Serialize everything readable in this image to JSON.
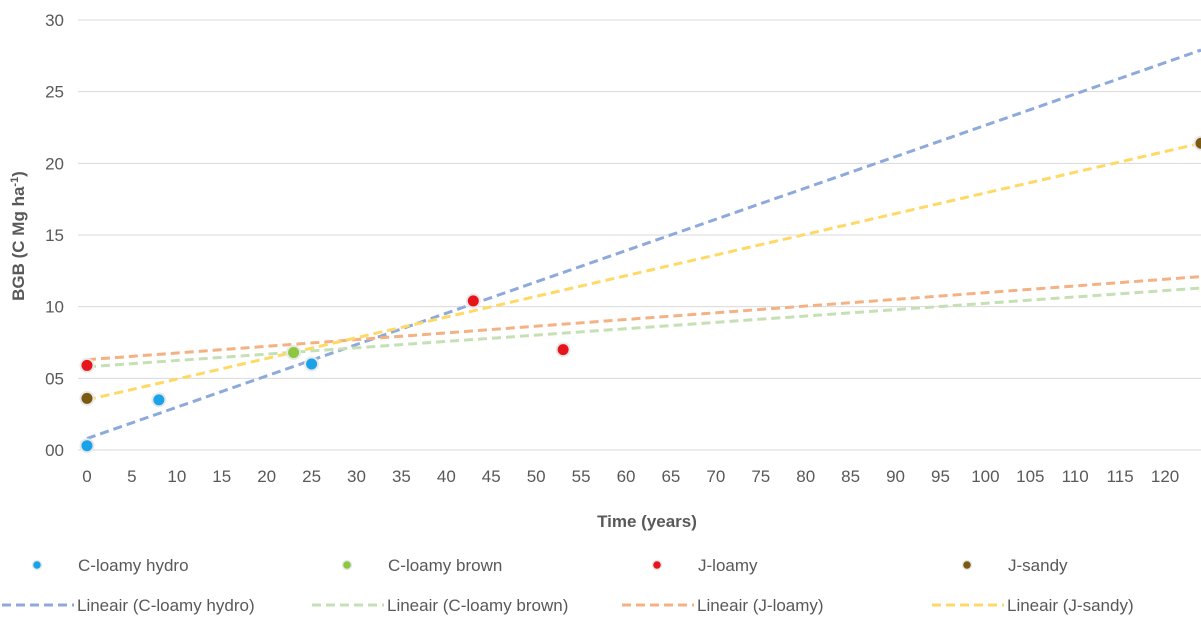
{
  "chart_data": {
    "type": "scatter",
    "title": "",
    "xlabel": "Time (years)",
    "ylabel": "BGB (C Mg ha",
    "ylabel_sup": "-1",
    "ylabel_tail": ")",
    "xlim": [
      -1,
      124
    ],
    "ylim": [
      0,
      30
    ],
    "x_ticks": [
      0,
      5,
      10,
      15,
      20,
      25,
      30,
      35,
      40,
      45,
      50,
      55,
      60,
      65,
      70,
      75,
      80,
      85,
      90,
      95,
      100,
      105,
      110,
      115,
      120
    ],
    "y_ticks": [
      0,
      5,
      10,
      15,
      20,
      25,
      30
    ],
    "y_tick_labels": [
      "00",
      "05",
      "10",
      "15",
      "20",
      "25",
      "30"
    ],
    "grid": "horizontal",
    "legend_position": "bottom",
    "series": [
      {
        "name": "C-loamy hydro",
        "color": "#1aa3e8",
        "x": [
          0,
          8,
          25
        ],
        "y": [
          0.3,
          3.5,
          6.0
        ]
      },
      {
        "name": "C-loamy brown",
        "color": "#8dc63f",
        "x": [
          23
        ],
        "y": [
          6.8
        ]
      },
      {
        "name": "J-loamy",
        "color": "#e8141c",
        "x": [
          0,
          43,
          53
        ],
        "y": [
          5.9,
          10.4,
          7.0
        ]
      },
      {
        "name": "J-sandy",
        "color": "#7a5a12",
        "x": [
          0,
          124
        ],
        "y": [
          3.6,
          21.4
        ]
      }
    ],
    "trendlines": [
      {
        "name": "Lineair (C-loamy hydro)",
        "color": "#8ea9db",
        "x": [
          0,
          124
        ],
        "y": [
          0.8,
          27.9
        ]
      },
      {
        "name": "Lineair (C-loamy brown)",
        "color": "#c5e0b4",
        "x": [
          0,
          124
        ],
        "y": [
          5.8,
          11.3
        ]
      },
      {
        "name": "Lineair (J-loamy)",
        "color": "#f4b183",
        "x": [
          0,
          124
        ],
        "y": [
          6.3,
          12.1
        ]
      },
      {
        "name": "Lineair (J-sandy)",
        "color": "#ffd966",
        "x": [
          0,
          124
        ],
        "y": [
          3.5,
          21.4
        ]
      }
    ]
  }
}
